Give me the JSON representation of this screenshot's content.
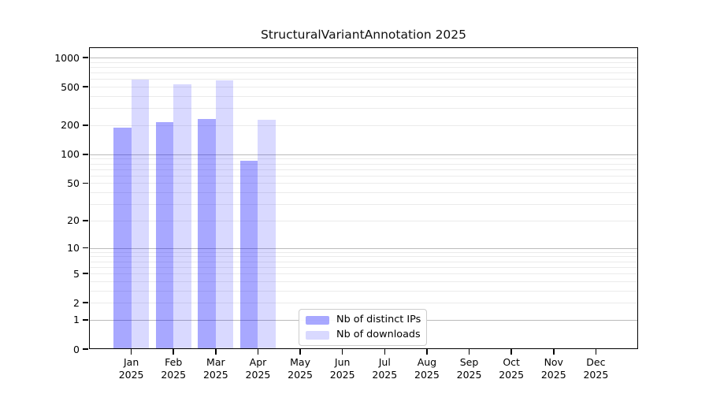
{
  "title": "StructuralVariantAnnotation 2025",
  "chart_data": {
    "type": "bar",
    "title": "StructuralVariantAnnotation 2025",
    "scale": "log1p",
    "xlabel": "",
    "ylabel": "",
    "year": "2025",
    "categories": [
      "Jan",
      "Feb",
      "Mar",
      "Apr",
      "May",
      "Jun",
      "Jul",
      "Aug",
      "Sep",
      "Oct",
      "Nov",
      "Dec"
    ],
    "series": [
      {
        "name": "Nb of distinct IPs",
        "color": "rgba(0,0,255,0.34)",
        "values": [
          190,
          215,
          232,
          85,
          null,
          null,
          null,
          null,
          null,
          null,
          null,
          null
        ]
      },
      {
        "name": "Nb of downloads",
        "color": "rgba(0,0,255,0.15)",
        "values": [
          590,
          533,
          581,
          228,
          null,
          null,
          null,
          null,
          null,
          null,
          null,
          null
        ]
      }
    ],
    "y_ticks": [
      0,
      1,
      2,
      5,
      10,
      20,
      50,
      100,
      200,
      500,
      1000
    ],
    "y_major_gridlines": [
      1,
      10,
      100,
      1000
    ],
    "y_minor_gridlines": [
      2,
      3,
      4,
      5,
      6,
      7,
      8,
      9,
      20,
      30,
      40,
      50,
      60,
      70,
      80,
      90,
      200,
      300,
      400,
      500,
      600,
      700,
      800,
      900
    ],
    "ylim": [
      0,
      1250
    ],
    "grid": "horizontal",
    "legend_position": "bottom-center",
    "colors": {
      "grid_major": "#bbbbbb",
      "grid_minor": "#ebebeb",
      "spine": "#000000",
      "legend_border": "#cccccc",
      "background": "#ffffff"
    }
  }
}
